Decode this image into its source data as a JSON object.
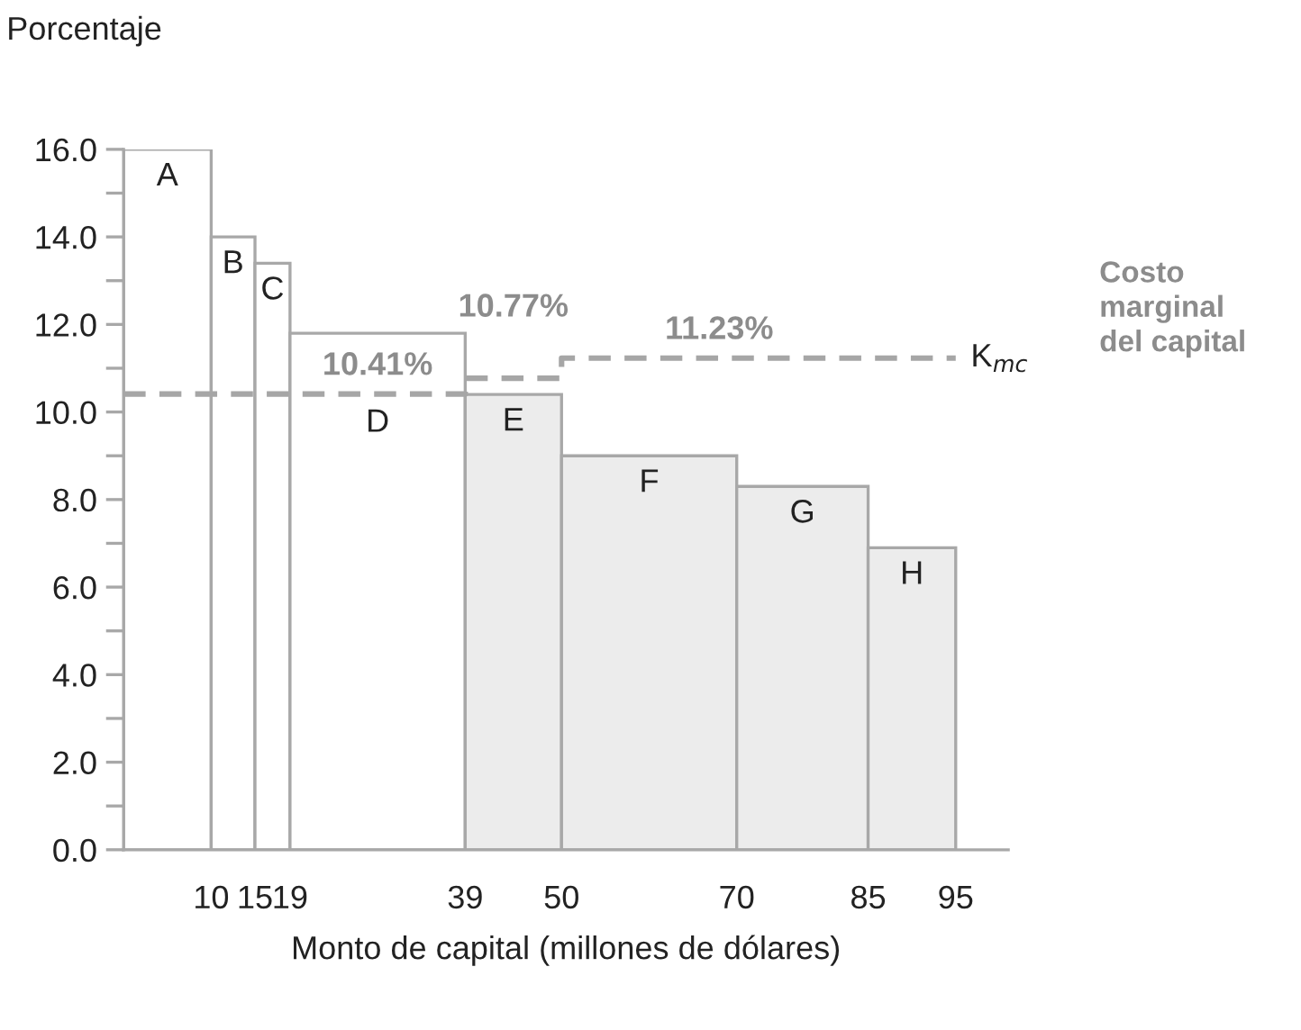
{
  "chart_data": {
    "type": "histogram",
    "ylabel": "Porcentaje",
    "xlabel": "Monto de capital (millones de dólares)",
    "bins": [
      0,
      10,
      15,
      19,
      39,
      50,
      70,
      85,
      95
    ],
    "values": [
      16.0,
      14.0,
      13.4,
      11.8,
      10.4,
      9.0,
      8.3,
      6.9
    ],
    "colors": [
      "#ffffff",
      "#ffffff",
      "#ffffff",
      "#ffffff",
      "#ececec",
      "#ececec",
      "#ececec",
      "#ececec"
    ],
    "series": [
      {
        "type": "step",
        "x": [
          0,
          39,
          50,
          95
        ],
        "values": [
          10.41,
          10.77,
          11.23,
          11.23
        ],
        "color": "#a6a6a6",
        "line_style": "dashed"
      }
    ],
    "xlim": [
      0,
      101
    ],
    "xticks": [
      10,
      15,
      19,
      39,
      50,
      70,
      85,
      95
    ],
    "ylim": [
      0,
      16.0
    ],
    "yticks": [
      {
        "value": 0,
        "label": "0.0"
      },
      {
        "value": 1,
        "label": null
      },
      {
        "value": 2,
        "label": "2.0"
      },
      {
        "value": 3,
        "label": null
      },
      {
        "value": 4,
        "label": "4.0"
      },
      {
        "value": 5,
        "label": null
      },
      {
        "value": 6,
        "label": "6.0"
      },
      {
        "value": 7,
        "label": null
      },
      {
        "value": 8,
        "label": "8.0"
      },
      {
        "value": 9,
        "label": null
      },
      {
        "value": 10,
        "label": "10.0"
      },
      {
        "value": 11,
        "label": null
      },
      {
        "value": 12,
        "label": "12.0"
      },
      {
        "value": 13,
        "label": null
      },
      {
        "value": 14,
        "label": "14.0"
      },
      {
        "value": 15,
        "label": null
      },
      {
        "value": 16,
        "label": "16.0"
      }
    ],
    "annotations": [
      {
        "text": "A",
        "x": 5,
        "y": 16.0
      },
      {
        "text": "B",
        "x": 12.5,
        "y": 14.0
      },
      {
        "text": "C",
        "x": 17,
        "y": 13.4
      },
      {
        "text": "D",
        "x": 29,
        "y": 11.8
      },
      {
        "text": "E",
        "x": 44.5,
        "y": 10.4
      },
      {
        "text": "F",
        "x": 60,
        "y": 9.0
      },
      {
        "text": "G",
        "x": 77.5,
        "y": 8.3
      },
      {
        "text": "H",
        "x": 90,
        "y": 6.9
      },
      {
        "text": "10.41%",
        "x": 29,
        "y": 10.41
      },
      {
        "text": "10.77%",
        "x": 44.5,
        "y": 10.77
      },
      {
        "text": "11.23%",
        "x": 68,
        "y": 11.23
      },
      {
        "text": "K$_{mc}$",
        "x": 95,
        "y": 11.23
      },
      "Costo\nmarginal\ndel capital"
    ]
  }
}
